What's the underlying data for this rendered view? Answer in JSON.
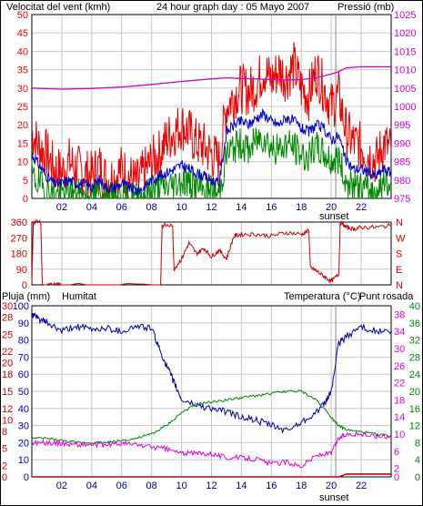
{
  "header": {
    "wind_label": "Velocitat del vent (kmh)",
    "date_label": "24 hour graph day : 05 Mayo 2007",
    "pressure_label": "Pressió (mb)"
  },
  "lower_header": {
    "rain_label": "Pluja (mm)",
    "humidity_label": "Humitat",
    "temp_label": "Temperatura (°C)",
    "dew_label": "Punt rosada"
  },
  "sunset_label": "sunset",
  "colors": {
    "wind_gust": "#ee0000",
    "wind_avg": "#0000cc",
    "wind_min": "#008800",
    "pressure": "#cc00cc",
    "direction": "#cc0000",
    "rain": "#cc0000",
    "humidity": "#0000aa",
    "temperature": "#008800",
    "dew_point": "#dd00dd",
    "grid": "#c8c8c8"
  },
  "chart_data": [
    {
      "type": "line",
      "title": "24 hour graph day : 05 Mayo 2007",
      "x_unit": "hour",
      "x_ticks": [
        "02",
        "04",
        "06",
        "08",
        "10",
        "12",
        "14",
        "16",
        "18",
        "20",
        "22"
      ],
      "x_tick_values": [
        2,
        4,
        6,
        8,
        10,
        12,
        14,
        16,
        18,
        20,
        22
      ],
      "xlim": [
        0,
        24
      ],
      "annotation": {
        "text": "sunset",
        "x": 20.3
      },
      "left_axis": {
        "label": "Velocitat del vent (kmh)",
        "ylim": [
          0,
          50
        ],
        "ticks": [
          0,
          5,
          10,
          15,
          20,
          25,
          30,
          35,
          40,
          45,
          50
        ]
      },
      "right_axis": {
        "label": "Pressió (mb)",
        "ylim": [
          975,
          1025
        ],
        "ticks": [
          975,
          980,
          985,
          990,
          995,
          1000,
          1005,
          1010,
          1015,
          1020,
          1025
        ]
      },
      "grid": true,
      "series": [
        {
          "axis": "right",
          "x": [
            0,
            2,
            4,
            6,
            8,
            10,
            12,
            13,
            14,
            15,
            16,
            17,
            18,
            19,
            20,
            20.5,
            21,
            22,
            23,
            24
          ],
          "values": [
            1005,
            1004.7,
            1004.9,
            1005.3,
            1006,
            1006.8,
            1007.5,
            1007.8,
            1007.6,
            1007.5,
            1007.3,
            1007.2,
            1007.3,
            1007.8,
            1008.8,
            1009.5,
            1010.5,
            1010.8,
            1010.8,
            1010.8
          ]
        },
        {
          "axis": "left",
          "x": [
            0,
            0.5,
            1,
            1.5,
            2,
            2.5,
            3,
            3.5,
            4,
            4.5,
            5,
            5.5,
            6,
            6.5,
            7,
            7.5,
            8,
            8.5,
            9,
            9.5,
            10,
            10.5,
            11,
            11.5,
            12,
            12.5,
            13,
            13.5,
            14,
            14.5,
            15,
            15.5,
            16,
            16.5,
            17,
            17.5,
            18,
            18.5,
            19,
            19.5,
            20,
            20.5,
            21,
            21.5,
            22,
            22.5,
            23,
            23.5,
            24
          ],
          "values": [
            18,
            14,
            12,
            8,
            7,
            10,
            8,
            7,
            6,
            9,
            5,
            6,
            8,
            6,
            4,
            7,
            10,
            12,
            16,
            18,
            20,
            18,
            15,
            14,
            12,
            10,
            25,
            28,
            30,
            29,
            31,
            35,
            32,
            35,
            33,
            36,
            30,
            28,
            35,
            30,
            25,
            28,
            18,
            15,
            14,
            12,
            10,
            15,
            13
          ]
        },
        {
          "axis": "left",
          "x": [
            0,
            0.5,
            1,
            1.5,
            2,
            2.5,
            3,
            3.5,
            4,
            4.5,
            5,
            5.5,
            6,
            6.5,
            7,
            7.5,
            8,
            8.5,
            9,
            9.5,
            10,
            10.5,
            11,
            11.5,
            12,
            12.5,
            13,
            13.5,
            14,
            14.5,
            15,
            15.5,
            16,
            16.5,
            17,
            17.5,
            18,
            18.5,
            19,
            19.5,
            20,
            20.5,
            21,
            21.5,
            22,
            22.5,
            23,
            23.5,
            24
          ],
          "values": [
            12,
            9,
            6,
            4,
            4,
            5,
            4,
            4,
            3,
            5,
            3,
            3,
            4,
            3,
            2,
            3,
            5,
            6,
            7,
            8,
            9,
            8,
            7,
            6,
            5,
            4,
            18,
            20,
            21,
            20,
            22,
            23,
            21,
            20,
            22,
            21,
            19,
            18,
            20,
            19,
            16,
            17,
            10,
            8,
            8,
            7,
            6,
            8,
            7
          ]
        },
        {
          "axis": "left",
          "x": [
            0,
            0.5,
            1,
            1.5,
            2,
            2.5,
            3,
            3.5,
            4,
            4.5,
            5,
            5.5,
            6,
            6.5,
            7,
            7.5,
            8,
            8.5,
            9,
            9.5,
            10,
            10.5,
            11,
            11.5,
            12,
            12.5,
            13,
            13.5,
            14,
            14.5,
            15,
            15.5,
            16,
            16.5,
            17,
            17.5,
            18,
            18.5,
            19,
            19.5,
            20,
            20.5,
            21,
            21.5,
            22,
            22.5,
            23,
            23.5,
            24
          ],
          "values": [
            6,
            4,
            2,
            1,
            1,
            2,
            1,
            1,
            0,
            2,
            0,
            0,
            1,
            0,
            0,
            1,
            2,
            3,
            3,
            4,
            5,
            4,
            3,
            2,
            2,
            1,
            12,
            14,
            15,
            13,
            16,
            17,
            14,
            13,
            15,
            14,
            12,
            11,
            14,
            12,
            10,
            11,
            4,
            3,
            3,
            2,
            2,
            4,
            3
          ]
        }
      ]
    },
    {
      "type": "line",
      "left_axis": {
        "ylim": [
          0,
          360
        ],
        "ticks": [
          0,
          90,
          180,
          270,
          360
        ]
      },
      "right_axis": {
        "ticks": [
          "N",
          "E",
          "S",
          "W",
          "N"
        ]
      },
      "x_ticks": [],
      "xlim": [
        0,
        24
      ],
      "grid": true,
      "series": [
        {
          "axis": "left",
          "x": [
            0,
            0.1,
            0.6,
            0.7,
            1.5,
            1.6,
            2.0,
            8.6,
            8.7,
            9.4,
            9.5,
            10.0,
            10.5,
            11.0,
            11.5,
            12.0,
            12.5,
            13.0,
            13.5,
            14.0,
            15.0,
            16.0,
            17.0,
            18.0,
            18.5,
            18.6,
            19.0,
            19.5,
            20.0,
            20.5,
            20.6,
            21.0,
            21.5,
            22.0,
            23.0,
            24.0
          ],
          "values": [
            0,
            360,
            360,
            0,
            0,
            0,
            0,
            0,
            340,
            340,
            90,
            150,
            240,
            180,
            210,
            160,
            200,
            150,
            280,
            290,
            290,
            280,
            300,
            290,
            310,
            100,
            80,
            50,
            20,
            60,
            360,
            330,
            320,
            330,
            330,
            340
          ]
        }
      ]
    },
    {
      "type": "line",
      "x_ticks": [
        "02",
        "04",
        "06",
        "08",
        "10",
        "12",
        "14",
        "16",
        "18",
        "20",
        "22"
      ],
      "x_tick_values": [
        2,
        4,
        6,
        8,
        10,
        12,
        14,
        16,
        18,
        20,
        22
      ],
      "xlim": [
        0,
        24
      ],
      "annotation": {
        "text": "sunset",
        "x": 20.3
      },
      "left_axis_outer": {
        "label": "Pluja (mm)",
        "ylim": [
          0,
          30
        ],
        "ticks": [
          0,
          2,
          5,
          8,
          10,
          12,
          15,
          18,
          20,
          22,
          25,
          28,
          30
        ]
      },
      "left_axis_inner": {
        "label": "Humitat",
        "ylim": [
          0,
          100
        ],
        "ticks": [
          0,
          10,
          20,
          30,
          40,
          50,
          60,
          70,
          80,
          90,
          100
        ]
      },
      "right_axis_outer": {
        "label": "Temperatura (°C)",
        "ylim": [
          0,
          40
        ],
        "ticks": [
          0,
          4,
          8,
          12,
          16,
          20,
          24,
          28,
          32,
          36,
          40
        ]
      },
      "right_axis_inner": {
        "label": "Punt rosada",
        "ylim": [
          0,
          40
        ],
        "ticks": [
          0,
          2,
          6,
          10,
          14,
          18,
          22,
          26,
          30,
          34,
          38
        ]
      },
      "grid": true,
      "series": [
        {
          "axis": "rain",
          "x": [
            0,
            20.5,
            21,
            24
          ],
          "values": [
            0,
            0,
            0.5,
            0.5
          ]
        },
        {
          "axis": "humidity",
          "x": [
            0,
            0.5,
            1,
            2,
            3,
            4,
            5,
            6,
            7,
            8,
            8.5,
            9,
            9.5,
            10,
            11,
            12,
            13,
            14,
            15,
            16,
            17,
            18,
            19,
            19.5,
            20,
            20.5,
            21,
            22,
            23,
            24
          ],
          "values": [
            95,
            92,
            90,
            85,
            88,
            86,
            87,
            85,
            88,
            87,
            75,
            65,
            55,
            45,
            42,
            40,
            38,
            35,
            33,
            30,
            27,
            32,
            38,
            42,
            50,
            78,
            82,
            88,
            85,
            85
          ]
        },
        {
          "axis": "temperature",
          "x": [
            0,
            1,
            2,
            3,
            4,
            5,
            6,
            7,
            8,
            9,
            10,
            11,
            12,
            13,
            14,
            15,
            16,
            17,
            18,
            19,
            20,
            20.5,
            21,
            22,
            23,
            24
          ],
          "values": [
            9,
            9,
            8.5,
            8,
            8,
            8,
            8.5,
            9,
            10,
            12,
            15,
            17,
            17.5,
            18,
            18.5,
            19,
            19.5,
            20,
            20,
            18,
            14,
            12,
            11,
            10.5,
            10,
            9.5
          ]
        },
        {
          "axis": "dew",
          "x": [
            0,
            1,
            2,
            3,
            4,
            5,
            6,
            7,
            8,
            9,
            10,
            11,
            12,
            13,
            14,
            15,
            16,
            17,
            18,
            19,
            20,
            20.5,
            21,
            22,
            23,
            24
          ],
          "values": [
            8,
            8,
            7.8,
            7.5,
            7.5,
            7.5,
            7.8,
            7.5,
            7,
            6.5,
            5.5,
            5.5,
            5.5,
            4.5,
            4.5,
            4.2,
            3,
            3.5,
            2.5,
            5,
            5.5,
            9,
            10,
            10,
            9.5,
            9.5
          ]
        }
      ]
    }
  ]
}
